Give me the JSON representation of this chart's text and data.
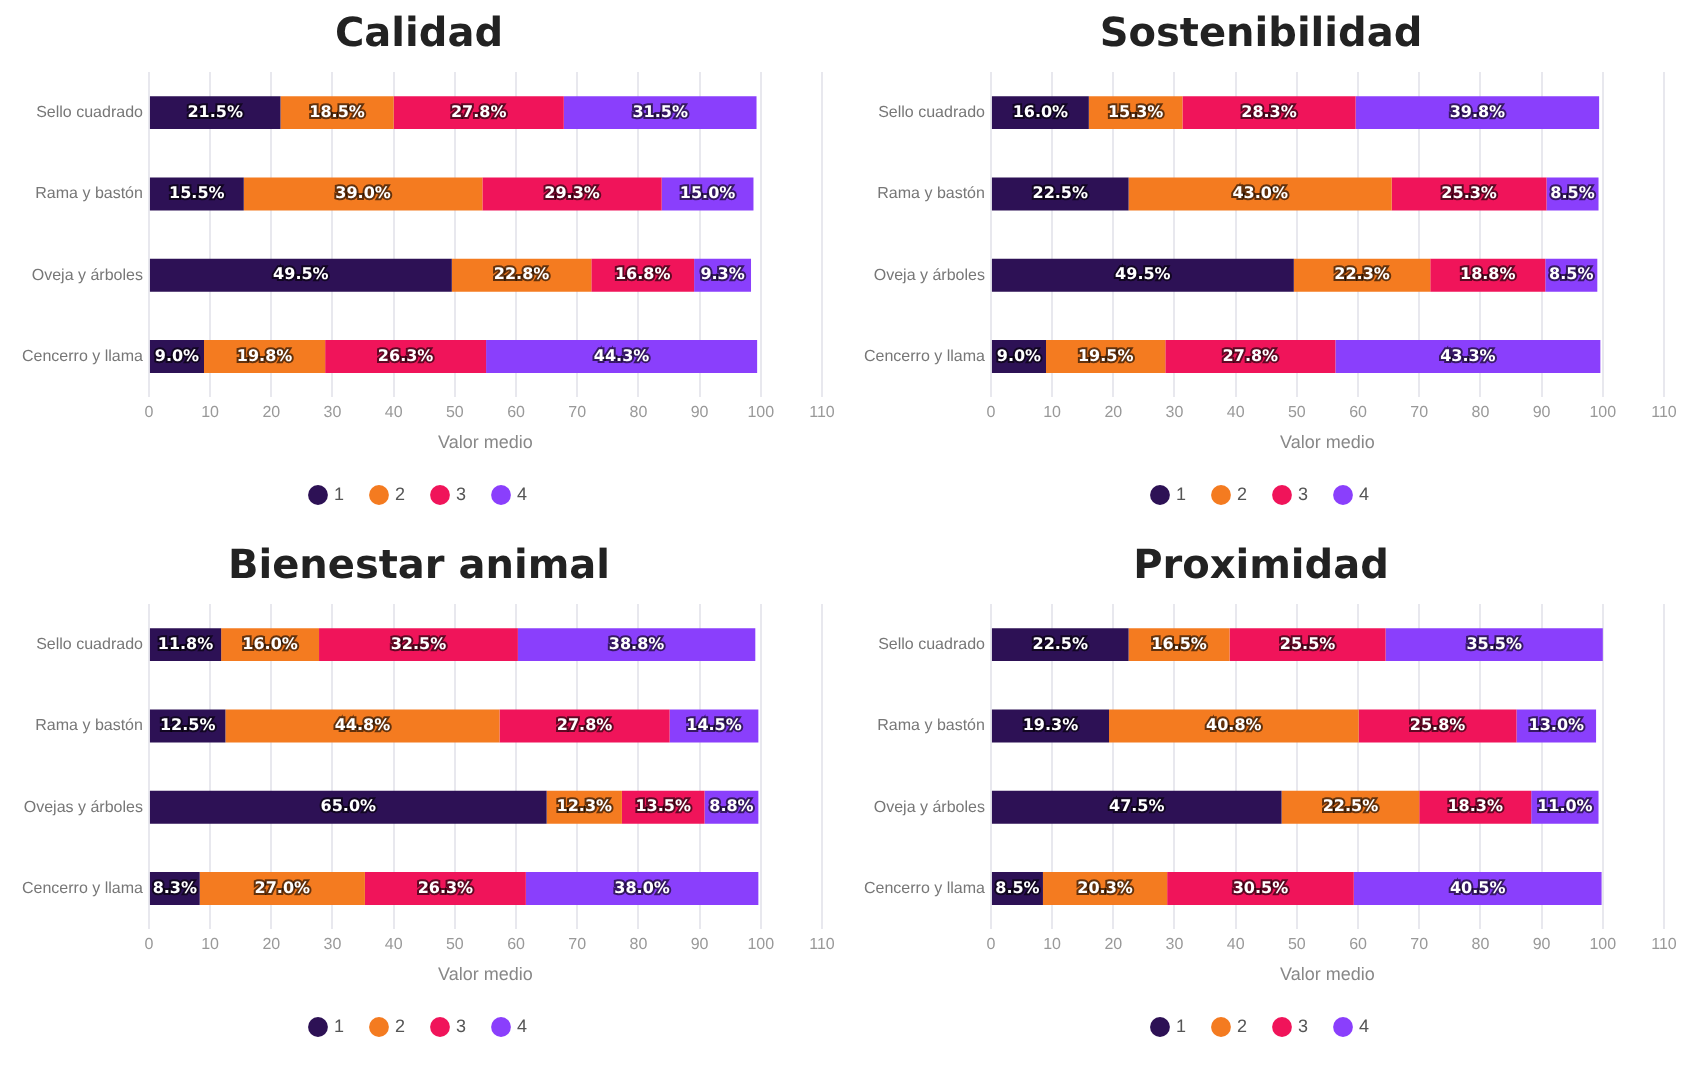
{
  "chart_data": [
    {
      "type": "bar",
      "title": "Calidad",
      "orientation": "horizontal",
      "stacked": true,
      "xlabel": "Valor medio",
      "categories": [
        "Sello cuadrado",
        "Rama y bastón",
        "Oveja y árboles",
        "Cencerro y llama"
      ],
      "xlim": [
        0,
        110
      ],
      "xticks": [
        0,
        10,
        20,
        30,
        40,
        50,
        60,
        70,
        80,
        90,
        100,
        110
      ],
      "grid": "x",
      "legend": "bottom",
      "series": [
        {
          "name": "1",
          "color": "#2d1155",
          "values": [
            21.5,
            15.5,
            49.5,
            9.0
          ],
          "value_labels": [
            "21.5%",
            "15.5%",
            "49.5%",
            "9.0%"
          ]
        },
        {
          "name": "2",
          "color": "#f47b20",
          "values": [
            18.5,
            39.0,
            22.8,
            19.8
          ],
          "value_labels": [
            "18.5%",
            "39.0%",
            "22.8%",
            "19.8%"
          ]
        },
        {
          "name": "3",
          "color": "#f0145a",
          "values": [
            27.8,
            29.3,
            16.8,
            26.3
          ],
          "value_labels": [
            "27.8%",
            "29.3%",
            "16.8%",
            "26.3%"
          ]
        },
        {
          "name": "4",
          "color": "#8a3ffc",
          "values": [
            31.5,
            15.0,
            9.3,
            44.3
          ],
          "value_labels": [
            "31.5%",
            "15.0%",
            "9.3%",
            "44.3%"
          ]
        }
      ]
    },
    {
      "type": "bar",
      "title": "Sostenibilidad",
      "orientation": "horizontal",
      "stacked": true,
      "xlabel": "Valor medio",
      "categories": [
        "Sello cuadrado",
        "Rama y bastón",
        "Oveja y árboles",
        "Cencerro y llama"
      ],
      "xlim": [
        0,
        110
      ],
      "xticks": [
        0,
        10,
        20,
        30,
        40,
        50,
        60,
        70,
        80,
        90,
        100,
        110
      ],
      "grid": "x",
      "legend": "bottom",
      "series": [
        {
          "name": "1",
          "color": "#2d1155",
          "values": [
            16.0,
            22.5,
            49.5,
            9.0
          ],
          "value_labels": [
            "16.0%",
            "22.5%",
            "49.5%",
            "9.0%"
          ]
        },
        {
          "name": "2",
          "color": "#f47b20",
          "values": [
            15.3,
            43.0,
            22.3,
            19.5
          ],
          "value_labels": [
            "15.3%",
            "43.0%",
            "22.3%",
            "19.5%"
          ]
        },
        {
          "name": "3",
          "color": "#f0145a",
          "values": [
            28.3,
            25.3,
            18.8,
            27.8
          ],
          "value_labels": [
            "28.3%",
            "25.3%",
            "18.8%",
            "27.8%"
          ]
        },
        {
          "name": "4",
          "color": "#8a3ffc",
          "values": [
            39.8,
            8.5,
            8.5,
            43.3
          ],
          "value_labels": [
            "39.8%",
            "8.5%",
            "8.5%",
            "43.3%"
          ]
        }
      ]
    },
    {
      "type": "bar",
      "title": "Bienestar animal",
      "orientation": "horizontal",
      "stacked": true,
      "xlabel": "Valor medio",
      "categories": [
        "Sello cuadrado",
        "Rama y bastón",
        "Ovejas y árboles",
        "Cencerro y llama"
      ],
      "xlim": [
        0,
        110
      ],
      "xticks": [
        0,
        10,
        20,
        30,
        40,
        50,
        60,
        70,
        80,
        90,
        100,
        110
      ],
      "grid": "x",
      "legend": "bottom",
      "series": [
        {
          "name": "1",
          "color": "#2d1155",
          "values": [
            11.8,
            12.5,
            65.0,
            8.3
          ],
          "value_labels": [
            "11.8%",
            "12.5%",
            "65.0%",
            "8.3%"
          ]
        },
        {
          "name": "2",
          "color": "#f47b20",
          "values": [
            16.0,
            44.8,
            12.3,
            27.0
          ],
          "value_labels": [
            "16.0%",
            "44.8%",
            "12.3%",
            "27.0%"
          ]
        },
        {
          "name": "3",
          "color": "#f0145a",
          "values": [
            32.5,
            27.8,
            13.5,
            26.3
          ],
          "value_labels": [
            "32.5%",
            "27.8%",
            "13.5%",
            "26.3%"
          ]
        },
        {
          "name": "4",
          "color": "#8a3ffc",
          "values": [
            38.8,
            14.5,
            8.8,
            38.0
          ],
          "value_labels": [
            "38.8%",
            "14.5%",
            "8.8%",
            "38.0%"
          ]
        }
      ]
    },
    {
      "type": "bar",
      "title": "Proximidad",
      "orientation": "horizontal",
      "stacked": true,
      "xlabel": "Valor medio",
      "categories": [
        "Sello cuadrado",
        "Rama y bastón",
        "Oveja y árboles",
        "Cencerro y llama"
      ],
      "xlim": [
        0,
        110
      ],
      "xticks": [
        0,
        10,
        20,
        30,
        40,
        50,
        60,
        70,
        80,
        90,
        100,
        110
      ],
      "grid": "x",
      "legend": "bottom",
      "series": [
        {
          "name": "1",
          "color": "#2d1155",
          "values": [
            22.5,
            19.3,
            47.5,
            8.5
          ],
          "value_labels": [
            "22.5%",
            "19.3%",
            "47.5%",
            "8.5%"
          ]
        },
        {
          "name": "2",
          "color": "#f47b20",
          "values": [
            16.5,
            40.8,
            22.5,
            20.3
          ],
          "value_labels": [
            "16.5%",
            "40.8%",
            "22.5%",
            "20.3%"
          ]
        },
        {
          "name": "3",
          "color": "#f0145a",
          "values": [
            25.5,
            25.8,
            18.3,
            30.5
          ],
          "value_labels": [
            "25.5%",
            "25.8%",
            "18.3%",
            "30.5%"
          ]
        },
        {
          "name": "4",
          "color": "#8a3ffc",
          "values": [
            35.5,
            13.0,
            11.0,
            40.5
          ],
          "value_labels": [
            "35.5%",
            "13.0%",
            "11.0%",
            "40.5%"
          ]
        }
      ]
    }
  ]
}
